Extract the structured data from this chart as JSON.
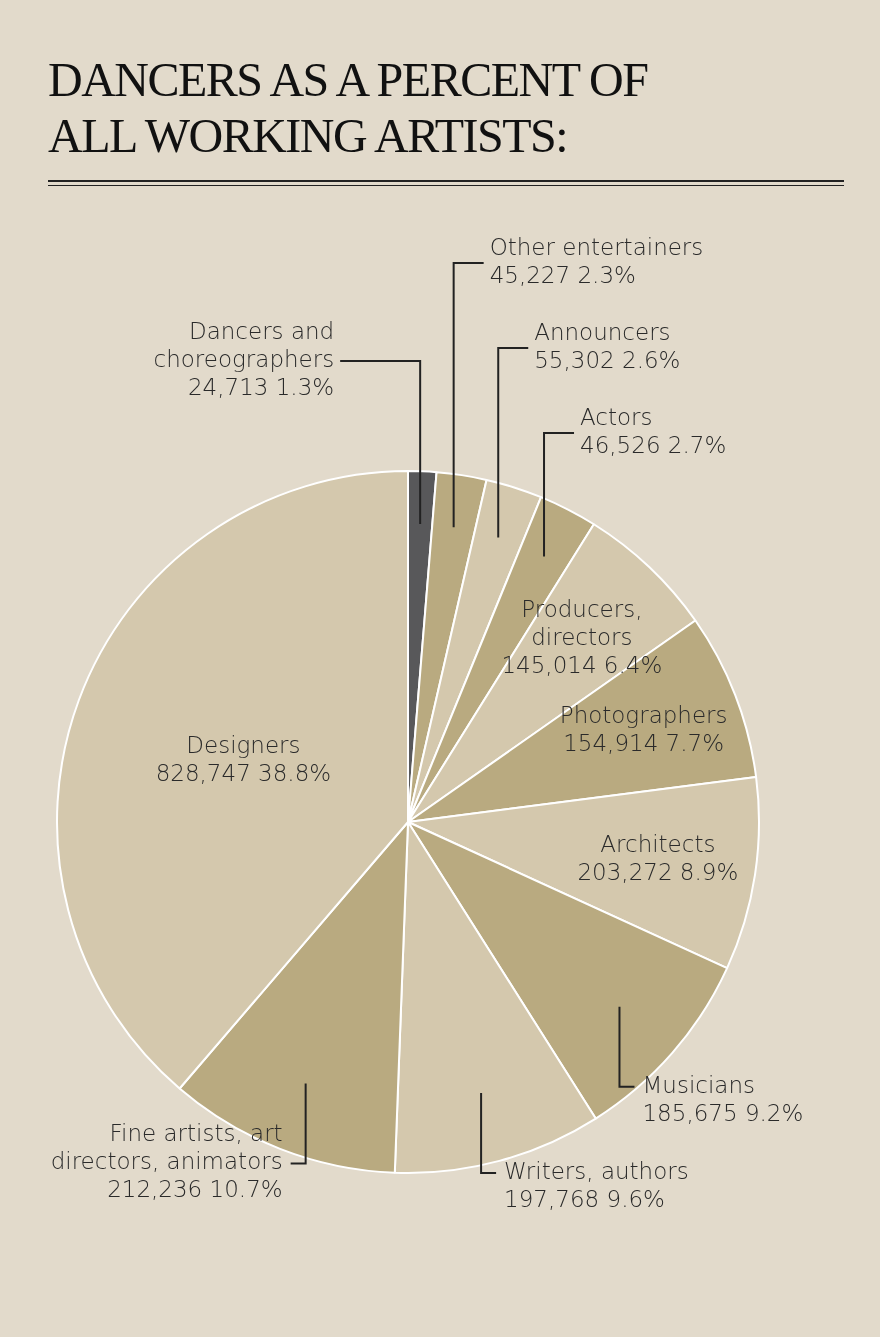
{
  "chart_data": {
    "type": "pie",
    "title": "DANCERS AS A PERCENT OF ALL WORKING ARTISTS:",
    "categories": [
      "Dancers and choreographers",
      "Other entertainers",
      "Announcers",
      "Actors",
      "Producers, directors",
      "Photographers",
      "Architects",
      "Musicians",
      "Writers, authors",
      "Fine artists, art directors, animators",
      "Designers"
    ],
    "values": [
      1.3,
      2.3,
      2.6,
      2.7,
      6.4,
      7.7,
      8.9,
      9.2,
      9.6,
      10.7,
      38.8
    ],
    "colors": [
      "#58585a",
      "#b9aa80",
      "#d4c8ad",
      "#b9aa80",
      "#d4c8ad",
      "#b9aa80",
      "#d4c8ad",
      "#b9aa80",
      "#d4c8ad",
      "#b9aa80",
      "#d4c8ad"
    ],
    "value_labels": [
      "24,713 1.3%",
      "45,227 2.3%",
      "55,302 2.6%",
      "46,526 2.7%",
      "145,014 6.4%",
      "154,914 7.7%",
      "203,272 8.9%",
      "185,675 9.2%",
      "197,768 9.6%",
      "212,236 10.7%",
      "828,747 38.8%"
    ]
  }
}
